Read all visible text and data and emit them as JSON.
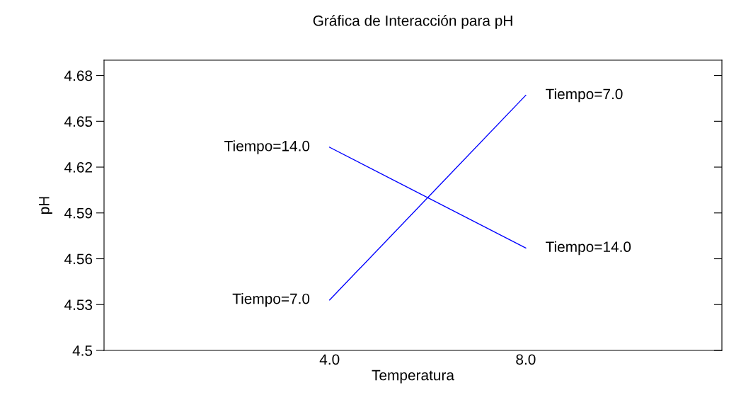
{
  "chart_data": {
    "type": "line",
    "title": "Gráfica de Interacción para pH",
    "xlabel": "Temperatura",
    "ylabel": "pH",
    "categories": [
      "4.0",
      "8.0"
    ],
    "series": [
      {
        "name": "Tiempo=7.0",
        "color": "#0000ff",
        "values": [
          4.533,
          4.667
        ]
      },
      {
        "name": "Tiempo=14.0",
        "color": "#0000ff",
        "values": [
          4.633,
          4.567
        ]
      }
    ],
    "ylim": [
      4.5,
      4.69
    ],
    "yticks": [
      4.5,
      4.53,
      4.56,
      4.59,
      4.62,
      4.65,
      4.68
    ],
    "grid": false,
    "legend": false,
    "marker": "none",
    "line_style": "solid"
  }
}
